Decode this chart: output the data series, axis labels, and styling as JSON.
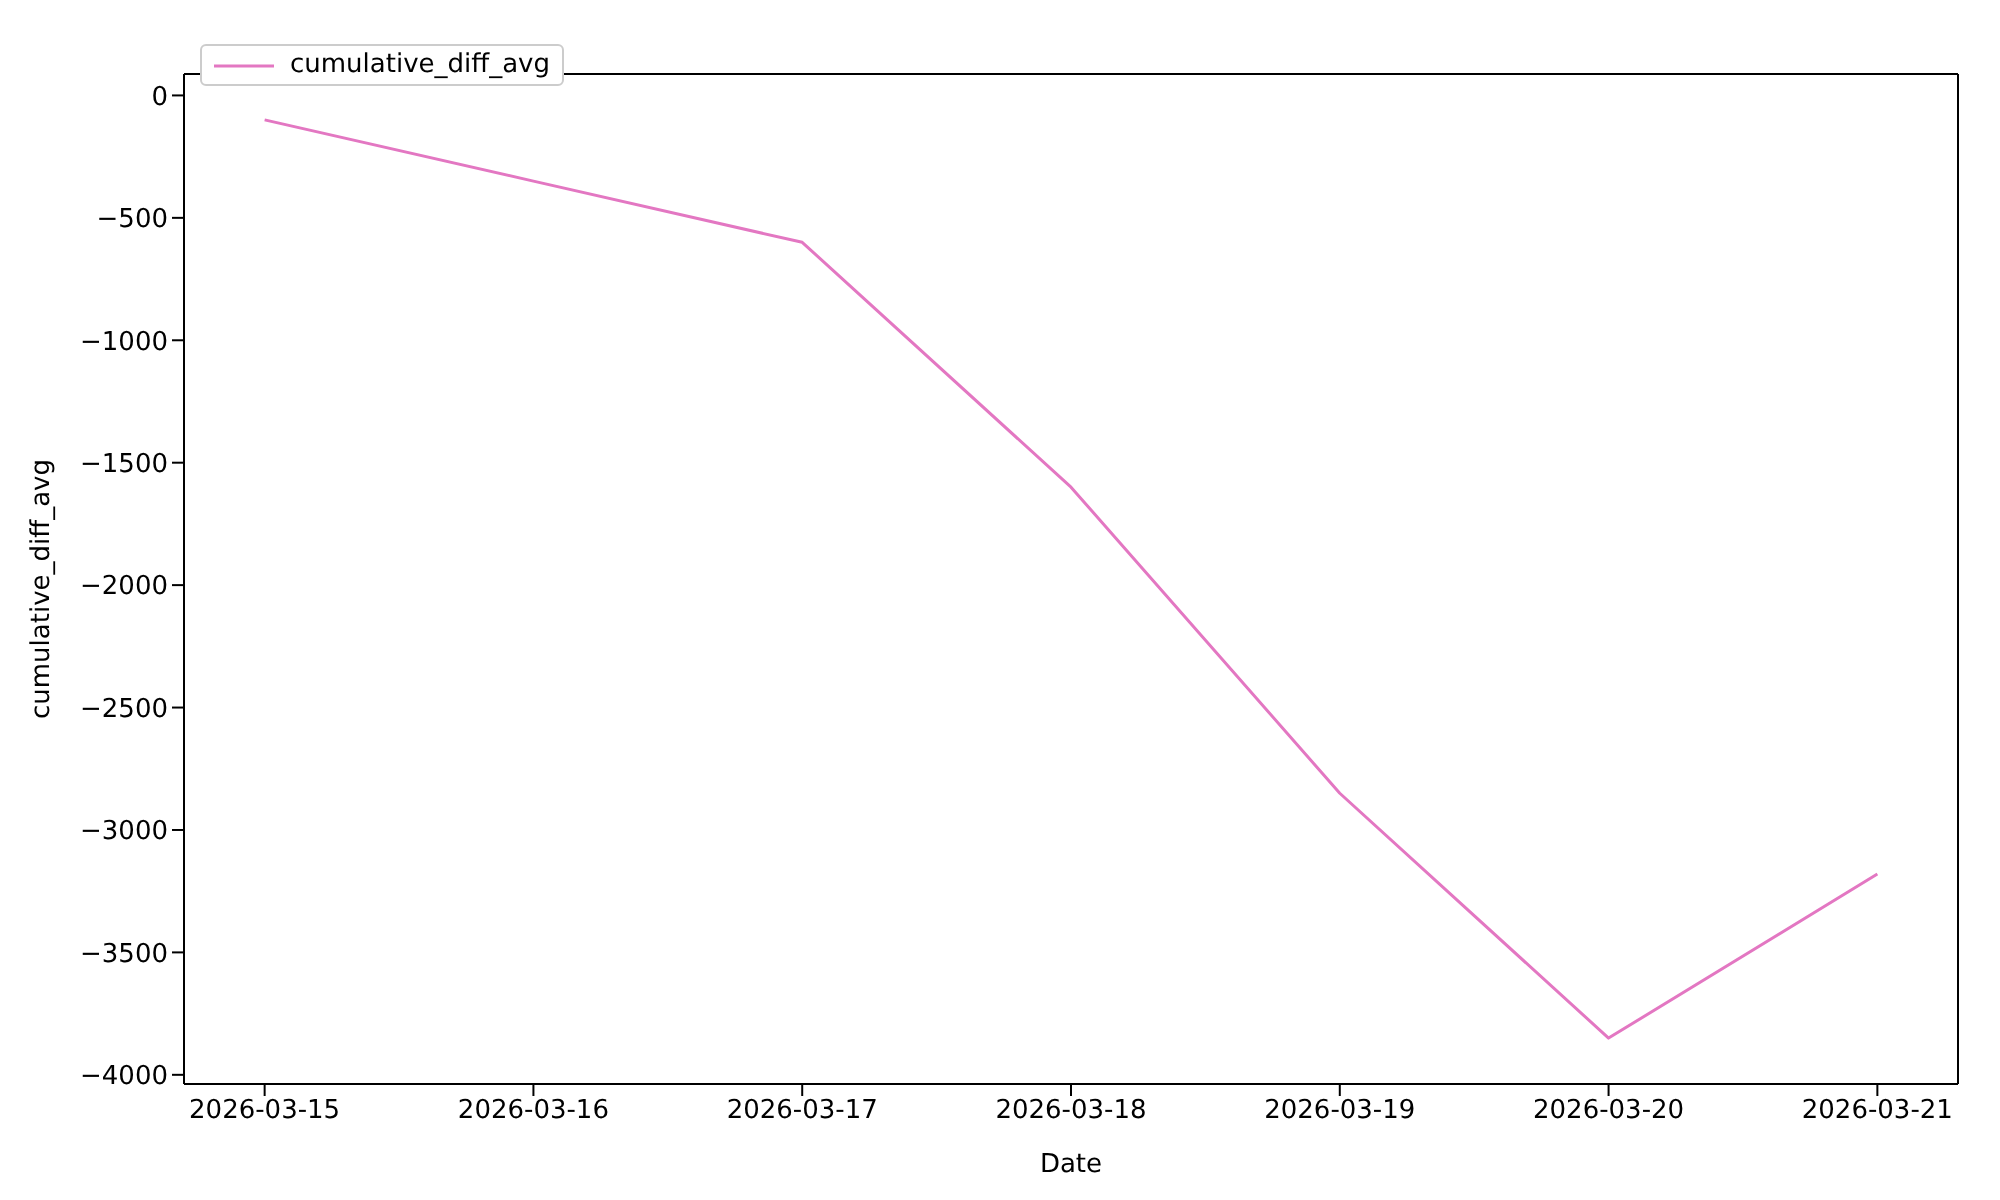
{
  "chart_data": {
    "type": "line",
    "xlabel": "Date",
    "ylabel": "cumulative_diff_avg",
    "x": [
      "2026-03-15",
      "2026-03-16",
      "2026-03-17",
      "2026-03-18",
      "2026-03-19",
      "2026-03-20",
      "2026-03-21"
    ],
    "series": [
      {
        "name": "cumulative_diff_avg",
        "color": "#e377c2",
        "values": [
          -100,
          -350,
          -600,
          -1600,
          -2850,
          -3850,
          -3180
        ]
      }
    ],
    "xlim": [
      "2026-03-14T16:48",
      "2026-03-21T07:12"
    ],
    "xticks": [
      "2026-03-15",
      "2026-03-16",
      "2026-03-17",
      "2026-03-18",
      "2026-03-19",
      "2026-03-20",
      "2026-03-21"
    ],
    "ylim": [
      -4037.5,
      87.5
    ],
    "yticks": [
      -4000,
      -3500,
      -3000,
      -2500,
      -2000,
      -1500,
      -1000,
      -500,
      0
    ],
    "grid": false,
    "legend": "top left",
    "marker": "none",
    "line_style": "solid"
  }
}
